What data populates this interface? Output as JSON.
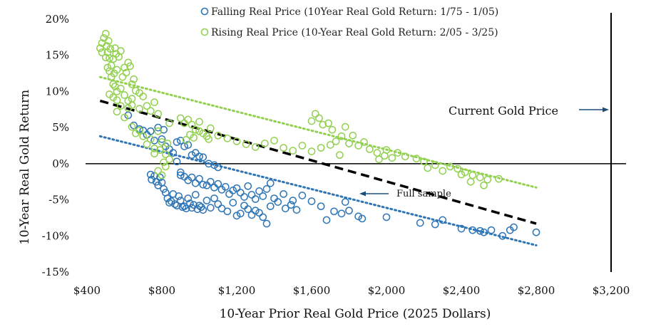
{
  "chart_data": {
    "type": "scatter",
    "xlabel": "10-Year Prior Real Gold Price (2025 Dollars)",
    "ylabel": "10-Year Real Gold Return",
    "xlim": [
      400,
      3200
    ],
    "ylim": [
      -15,
      20
    ],
    "x_ticks": [
      400,
      800,
      1200,
      1600,
      2000,
      2400,
      2800,
      3200
    ],
    "x_tick_labels": [
      "$400",
      "$800",
      "$1,200",
      "$1,600",
      "$2,000",
      "$2,400",
      "$2,800",
      "$3,200"
    ],
    "y_ticks": [
      -15,
      -10,
      -5,
      0,
      5,
      10,
      15,
      20
    ],
    "y_tick_labels": [
      "-15%",
      "-10%",
      "-5%",
      "0%",
      "5%",
      "10%",
      "15%",
      "20%"
    ],
    "zero_line": 0,
    "legend_position": "top",
    "colors": {
      "falling": "#2e75b6",
      "rising": "#92d050",
      "full": "#000000",
      "annotation": "#1f4e79"
    },
    "series": [
      {
        "name": "Falling Real Price (10Year Real Gold Return: 1/75 - 1/05)",
        "key": "falling",
        "points": [
          [
            620,
            6.7
          ],
          [
            650,
            5.3
          ],
          [
            680,
            4.8
          ],
          [
            700,
            4.6
          ],
          [
            720,
            4.0
          ],
          [
            740,
            4.5
          ],
          [
            760,
            3.2
          ],
          [
            780,
            5.0
          ],
          [
            800,
            3.4
          ],
          [
            810,
            4.7
          ],
          [
            820,
            2.4
          ],
          [
            840,
            2.0
          ],
          [
            860,
            1.5
          ],
          [
            880,
            3.0
          ],
          [
            900,
            3.2
          ],
          [
            920,
            2.4
          ],
          [
            940,
            2.6
          ],
          [
            960,
            1.2
          ],
          [
            980,
            1.5
          ],
          [
            1000,
            1.0
          ],
          [
            1020,
            0.9
          ],
          [
            1050,
            0.0
          ],
          [
            1080,
            -0.2
          ],
          [
            1100,
            -0.5
          ],
          [
            880,
            0.3
          ],
          [
            900,
            -1.2
          ],
          [
            740,
            -1.5
          ],
          [
            745,
            -2.2
          ],
          [
            760,
            -1.7
          ],
          [
            770,
            -2.5
          ],
          [
            780,
            -3.0
          ],
          [
            790,
            -1.9
          ],
          [
            800,
            -2.6
          ],
          [
            810,
            -3.5
          ],
          [
            820,
            -4.0
          ],
          [
            830,
            -4.8
          ],
          [
            840,
            -5.4
          ],
          [
            850,
            -5.2
          ],
          [
            860,
            -4.2
          ],
          [
            870,
            -5.6
          ],
          [
            880,
            -5.8
          ],
          [
            890,
            -4.5
          ],
          [
            900,
            -5.1
          ],
          [
            910,
            -6.0
          ],
          [
            920,
            -5.9
          ],
          [
            930,
            -6.2
          ],
          [
            940,
            -4.8
          ],
          [
            950,
            -5.5
          ],
          [
            960,
            -6.1
          ],
          [
            970,
            -5.7
          ],
          [
            980,
            -4.3
          ],
          [
            990,
            -6.3
          ],
          [
            1000,
            -5.8
          ],
          [
            1010,
            -6.0
          ],
          [
            1020,
            -6.4
          ],
          [
            1040,
            -5.1
          ],
          [
            1060,
            -6.1
          ],
          [
            1080,
            -4.8
          ],
          [
            1100,
            -5.6
          ],
          [
            1120,
            -6.2
          ],
          [
            1150,
            -6.6
          ],
          [
            1180,
            -5.4
          ],
          [
            1200,
            -7.2
          ],
          [
            1220,
            -6.9
          ],
          [
            1240,
            -5.8
          ],
          [
            1260,
            -6.3
          ],
          [
            1280,
            -7.1
          ],
          [
            1300,
            -6.5
          ],
          [
            1320,
            -6.8
          ],
          [
            1340,
            -7.4
          ],
          [
            1360,
            -8.3
          ],
          [
            1380,
            -5.9
          ],
          [
            1420,
            -5.3
          ],
          [
            1460,
            -6.2
          ],
          [
            1490,
            -5.7
          ],
          [
            1520,
            -6.4
          ],
          [
            900,
            -1.6
          ],
          [
            920,
            -1.8
          ],
          [
            940,
            -2.3
          ],
          [
            960,
            -1.9
          ],
          [
            980,
            -2.7
          ],
          [
            1000,
            -2.1
          ],
          [
            1020,
            -2.9
          ],
          [
            1040,
            -3.0
          ],
          [
            1060,
            -2.5
          ],
          [
            1080,
            -3.3
          ],
          [
            1100,
            -2.8
          ],
          [
            1120,
            -3.6
          ],
          [
            1140,
            -3.2
          ],
          [
            1160,
            -4.2
          ],
          [
            1180,
            -3.7
          ],
          [
            1200,
            -3.4
          ],
          [
            1220,
            -4.0
          ],
          [
            1240,
            -4.6
          ],
          [
            1260,
            -3.1
          ],
          [
            1280,
            -4.3
          ],
          [
            1300,
            -4.9
          ],
          [
            1320,
            -3.8
          ],
          [
            1340,
            -4.5
          ],
          [
            1360,
            -3.5
          ],
          [
            1380,
            -2.7
          ],
          [
            1400,
            -4.8
          ],
          [
            1450,
            -4.2
          ],
          [
            1500,
            -5.1
          ],
          [
            1550,
            -4.4
          ],
          [
            1600,
            -5.2
          ],
          [
            1650,
            -5.9
          ],
          [
            1680,
            -7.8
          ],
          [
            1720,
            -6.6
          ],
          [
            1760,
            -6.9
          ],
          [
            1780,
            -5.3
          ],
          [
            1800,
            -6.5
          ],
          [
            1850,
            -7.3
          ],
          [
            1870,
            -7.6
          ],
          [
            2000,
            -7.4
          ],
          [
            2180,
            -8.2
          ],
          [
            2260,
            -8.4
          ],
          [
            2300,
            -7.8
          ],
          [
            2400,
            -9.0
          ],
          [
            2460,
            -9.2
          ],
          [
            2500,
            -9.3
          ],
          [
            2520,
            -9.5
          ],
          [
            2560,
            -9.2
          ],
          [
            2620,
            -10.0
          ],
          [
            2660,
            -9.2
          ],
          [
            2680,
            -8.8
          ],
          [
            2800,
            -9.5
          ]
        ]
      },
      {
        "name": "Rising Real Price (10-Year Real Gold Return: 2/05 - 3/25)",
        "key": "rising",
        "points": [
          [
            470,
            16.0
          ],
          [
            480,
            16.7
          ],
          [
            490,
            17.4
          ],
          [
            500,
            18.0
          ],
          [
            505,
            16.3
          ],
          [
            510,
            15.4
          ],
          [
            515,
            17.0
          ],
          [
            520,
            14.6
          ],
          [
            525,
            15.9
          ],
          [
            530,
            13.6
          ],
          [
            540,
            14.5
          ],
          [
            545,
            12.5
          ],
          [
            550,
            16.0
          ],
          [
            555,
            15.2
          ],
          [
            560,
            13.0
          ],
          [
            570,
            14.8
          ],
          [
            580,
            15.6
          ],
          [
            590,
            12.0
          ],
          [
            600,
            13.3
          ],
          [
            610,
            12.6
          ],
          [
            620,
            14.0
          ],
          [
            630,
            13.5
          ],
          [
            640,
            11.0
          ],
          [
            650,
            11.7
          ],
          [
            480,
            15.4
          ],
          [
            500,
            14.7
          ],
          [
            510,
            13.3
          ],
          [
            520,
            12.8
          ],
          [
            530,
            12.0
          ],
          [
            540,
            11.0
          ],
          [
            550,
            10.7
          ],
          [
            560,
            10.0
          ],
          [
            520,
            9.6
          ],
          [
            540,
            9.2
          ],
          [
            560,
            8.8
          ],
          [
            580,
            10.4
          ],
          [
            600,
            9.5
          ],
          [
            620,
            8.7
          ],
          [
            640,
            9.0
          ],
          [
            660,
            10.1
          ],
          [
            680,
            9.8
          ],
          [
            700,
            9.3
          ],
          [
            720,
            8.0
          ],
          [
            740,
            7.3
          ],
          [
            760,
            8.5
          ],
          [
            780,
            6.9
          ],
          [
            560,
            7.2
          ],
          [
            580,
            8.0
          ],
          [
            600,
            6.4
          ],
          [
            620,
            7.7
          ],
          [
            640,
            8.1
          ],
          [
            680,
            7.6
          ],
          [
            640,
            5.1
          ],
          [
            660,
            4.2
          ],
          [
            680,
            4.6
          ],
          [
            700,
            3.8
          ],
          [
            720,
            2.7
          ],
          [
            740,
            3.4
          ],
          [
            760,
            2.1
          ],
          [
            780,
            4.5
          ],
          [
            800,
            3.0
          ],
          [
            820,
            1.3
          ],
          [
            840,
            0.6
          ],
          [
            790,
            1.9
          ],
          [
            810,
            0.2
          ],
          [
            760,
            1.4
          ],
          [
            780,
            -1.0
          ],
          [
            800,
            -1.6
          ],
          [
            820,
            -0.4
          ],
          [
            830,
            2.8
          ],
          [
            840,
            5.6
          ],
          [
            900,
            6.3
          ],
          [
            920,
            5.6
          ],
          [
            940,
            6.1
          ],
          [
            960,
            5.4
          ],
          [
            980,
            4.7
          ],
          [
            1000,
            5.8
          ],
          [
            1020,
            4.2
          ],
          [
            1040,
            3.8
          ],
          [
            1060,
            4.9
          ],
          [
            930,
            3.3
          ],
          [
            950,
            4.0
          ],
          [
            970,
            3.6
          ],
          [
            1000,
            4.5
          ],
          [
            1050,
            3.4
          ],
          [
            1100,
            3.9
          ],
          [
            1150,
            3.5
          ],
          [
            1200,
            3.1
          ],
          [
            1250,
            2.7
          ],
          [
            1300,
            2.3
          ],
          [
            1350,
            2.8
          ],
          [
            1400,
            3.2
          ],
          [
            1450,
            2.2
          ],
          [
            1500,
            1.8
          ],
          [
            1550,
            2.5
          ],
          [
            1600,
            1.7
          ],
          [
            1650,
            2.2
          ],
          [
            1700,
            2.6
          ],
          [
            1750,
            1.2
          ],
          [
            1620,
            6.9
          ],
          [
            1640,
            6.3
          ],
          [
            1660,
            5.4
          ],
          [
            1690,
            5.6
          ],
          [
            1710,
            4.7
          ],
          [
            1600,
            5.9
          ],
          [
            1730,
            3.1
          ],
          [
            1760,
            3.8
          ],
          [
            1780,
            5.1
          ],
          [
            1800,
            2.8
          ],
          [
            1820,
            3.9
          ],
          [
            1850,
            2.5
          ],
          [
            1880,
            3.0
          ],
          [
            1910,
            2.0
          ],
          [
            1950,
            1.5
          ],
          [
            1990,
            1.1
          ],
          [
            2030,
            0.8
          ],
          [
            1960,
            0.6
          ],
          [
            2000,
            1.9
          ],
          [
            2060,
            1.5
          ],
          [
            2100,
            1.0
          ],
          [
            2160,
            0.7
          ],
          [
            2200,
            0.3
          ],
          [
            2220,
            -0.6
          ],
          [
            2260,
            -0.2
          ],
          [
            2300,
            -1.0
          ],
          [
            2340,
            -0.4
          ],
          [
            2380,
            -0.7
          ],
          [
            2420,
            -1.2
          ],
          [
            2460,
            -1.6
          ],
          [
            2500,
            -1.9
          ],
          [
            2540,
            -2.2
          ],
          [
            2400,
            -1.5
          ],
          [
            2450,
            -2.5
          ],
          [
            2520,
            -3.0
          ],
          [
            2600,
            -2.1
          ]
        ]
      }
    ],
    "trendlines": [
      {
        "key": "full",
        "name": "Full sample",
        "style": "dashed",
        "x": [
          470,
          2800
        ],
        "y": [
          8.7,
          -8.3
        ]
      },
      {
        "key": "rising",
        "style": "dotted",
        "x": [
          470,
          2800
        ],
        "y": [
          12.0,
          -3.3
        ]
      },
      {
        "key": "falling",
        "style": "dotted",
        "x": [
          470,
          2800
        ],
        "y": [
          3.8,
          -11.3
        ]
      }
    ],
    "reference_line": {
      "x": 3200,
      "label": "Current Gold Price"
    },
    "annotations": [
      {
        "text": "Current Gold Price",
        "x": 2340,
        "y": 7.5,
        "arrow_to": [
          3200,
          7.5
        ]
      },
      {
        "text": "Full sample",
        "x": 1880,
        "y": -4.3,
        "arrow_to": [
          1760,
          -4.3
        ]
      }
    ]
  }
}
